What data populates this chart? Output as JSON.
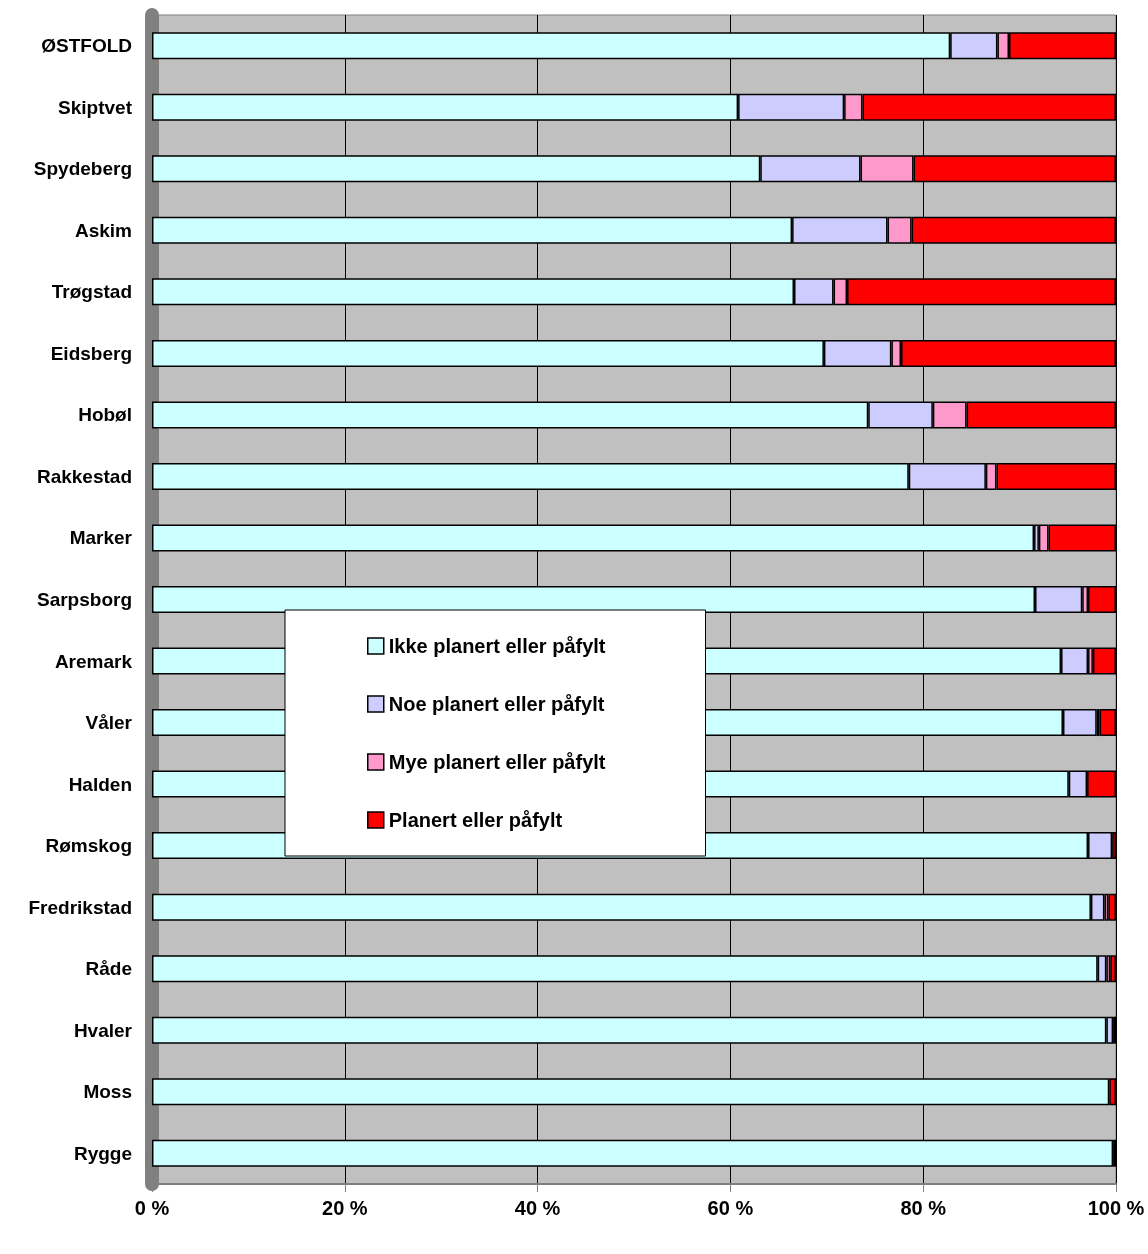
{
  "chart_data": {
    "type": "bar",
    "orientation": "horizontal",
    "stacked": true,
    "categories": [
      "ØSTFOLD",
      "Skiptvet",
      "Spydeberg",
      "Askim",
      "Trøgstad",
      "Eidsberg",
      "Hobøl",
      "Rakkestad",
      "Marker",
      "Sarpsborg",
      "Aremark",
      "Våler",
      "Halden",
      "Rømskog",
      "Fredrikstad",
      "Råde",
      "Hvaler",
      "Moss",
      "Rygge"
    ],
    "series": [
      {
        "name": "Ikke planert eller påfylt",
        "color": "#ccffff",
        "values": [
          82.8,
          60.8,
          63.1,
          66.4,
          66.6,
          69.7,
          74.3,
          78.5,
          91.5,
          91.6,
          94.3,
          94.5,
          95.1,
          97.1,
          97.4,
          98.1,
          99.0,
          99.3,
          99.7
        ]
      },
      {
        "name": "Noe planert eller påfylt",
        "color": "#ccccff",
        "values": [
          4.9,
          11.0,
          10.4,
          9.9,
          4.1,
          7.0,
          6.7,
          8.0,
          0.5,
          4.9,
          2.8,
          3.5,
          1.9,
          2.5,
          1.4,
          0.9,
          0.7,
          null,
          null
        ]
      },
      {
        "name": "Mye planert eller påfylt",
        "color": "#ff99cc",
        "values": [
          1.2,
          1.9,
          5.5,
          2.5,
          1.4,
          1.0,
          3.5,
          1.1,
          1.0,
          0.6,
          0.5,
          0.3,
          null,
          null,
          0.4,
          0.4,
          null,
          null,
          null
        ]
      },
      {
        "name": "Planert eller påfylt",
        "color": "#ff0000",
        "values": [
          11.1,
          26.3,
          21.0,
          21.2,
          27.9,
          22.3,
          15.5,
          12.4,
          7.0,
          2.9,
          2.4,
          1.7,
          3.0,
          0.4,
          0.8,
          0.6,
          0.3,
          0.7,
          0.3
        ]
      }
    ],
    "xlim": [
      0,
      100
    ],
    "xticks": [
      {
        "value": 0,
        "label": "0 %"
      },
      {
        "value": 20,
        "label": "20 %"
      },
      {
        "value": 40,
        "label": "40 %"
      },
      {
        "value": 60,
        "label": "60 %"
      },
      {
        "value": 80,
        "label": "80 %"
      },
      {
        "value": 100,
        "label": "100 %"
      }
    ],
    "grid": "x",
    "legend": "center"
  }
}
